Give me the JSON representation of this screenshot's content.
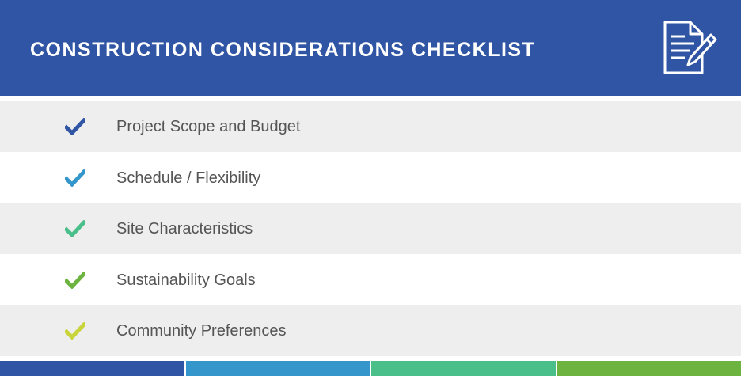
{
  "header": {
    "title": "CONSTRUCTION CONSIDERATIONS CHECKLIST",
    "icon": "document-edit-icon",
    "background_color": "#2f55a4"
  },
  "checklist": [
    {
      "label": "Project Scope and Budget",
      "check_color": "#2f55a4",
      "icon": "checkmark-icon"
    },
    {
      "label": "Schedule / Flexibility",
      "check_color": "#3596cc",
      "icon": "checkmark-icon"
    },
    {
      "label": "Site Characteristics",
      "check_color": "#4bbf8a",
      "icon": "checkmark-icon"
    },
    {
      "label": "Sustainability Goals",
      "check_color": "#6cb33f",
      "icon": "checkmark-icon"
    },
    {
      "label": "Community Preferences",
      "check_color": "#c9d43a",
      "icon": "checkmark-icon"
    }
  ],
  "footer": {
    "bar_colors": [
      "#2f55a4",
      "#3596cc",
      "#4bbf8a",
      "#6cb33f"
    ]
  }
}
